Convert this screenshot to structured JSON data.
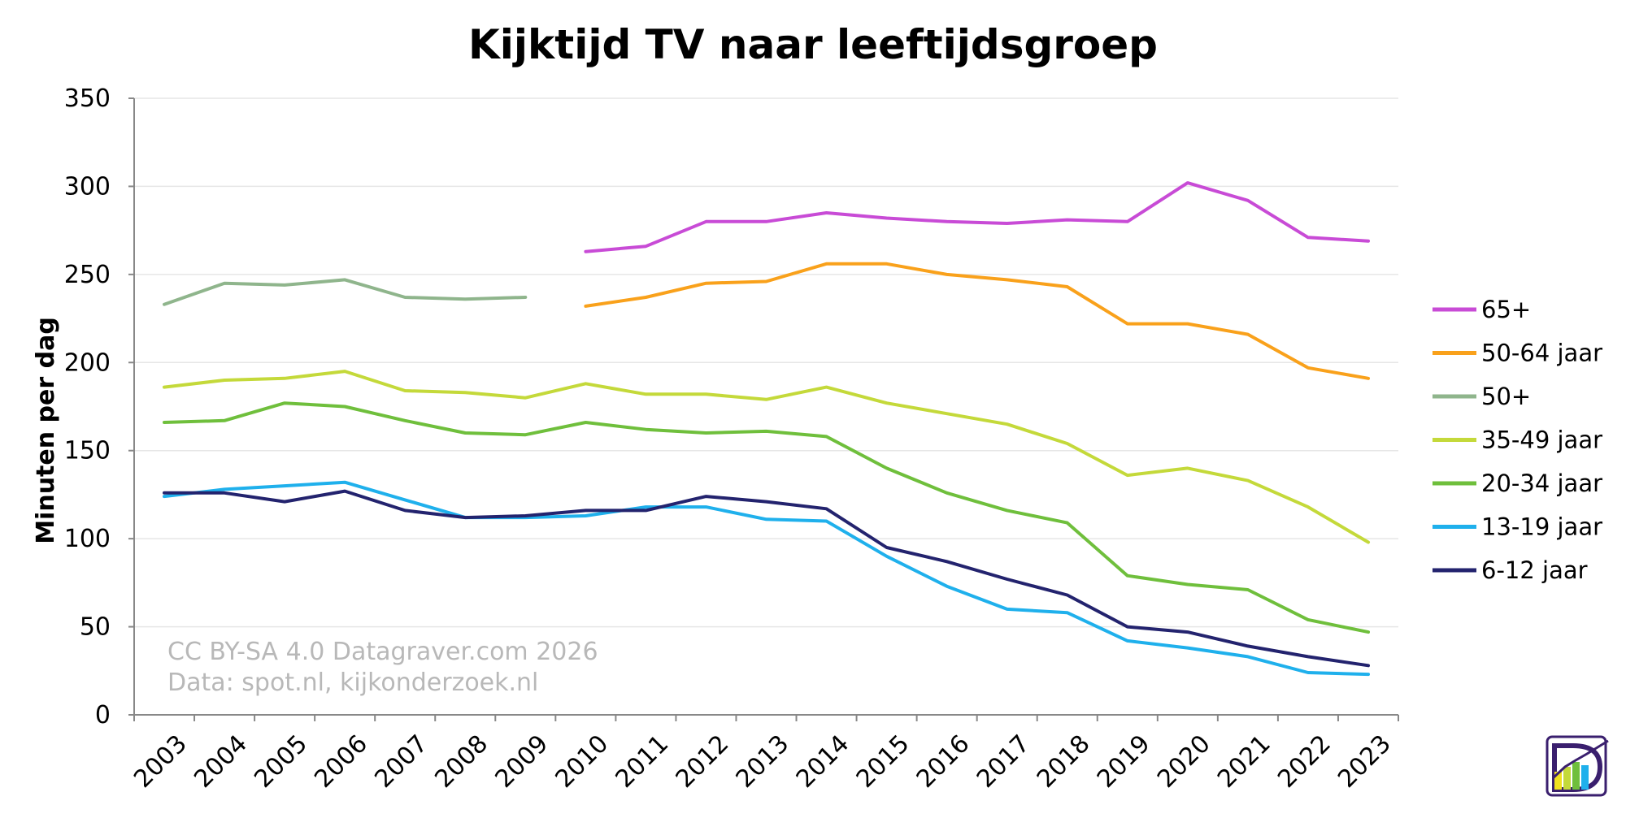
{
  "chart_data": {
    "type": "line",
    "title": "Kijktijd TV naar leeftijdsgroep",
    "xlabel": "",
    "ylabel": "Minuten per dag",
    "ylim": [
      0,
      350
    ],
    "yticks": [
      0,
      50,
      100,
      150,
      200,
      250,
      300,
      350
    ],
    "categories": [
      "2003",
      "2004",
      "2005",
      "2006",
      "2007",
      "2008",
      "2009",
      "2010",
      "2011",
      "2012",
      "2013",
      "2014",
      "2015",
      "2016",
      "2017",
      "2018",
      "2019",
      "2020",
      "2021",
      "2022",
      "2023"
    ],
    "grid": true,
    "legend_position": "right",
    "series": [
      {
        "name": "65+",
        "color": "#c84bd6",
        "values": [
          null,
          null,
          null,
          null,
          null,
          null,
          null,
          263,
          266,
          280,
          280,
          285,
          282,
          280,
          279,
          281,
          280,
          302,
          292,
          271,
          269
        ]
      },
      {
        "name": "50-64 jaar",
        "color": "#f9a11b",
        "values": [
          null,
          null,
          null,
          null,
          null,
          null,
          null,
          232,
          237,
          245,
          246,
          256,
          256,
          250,
          247,
          243,
          222,
          222,
          216,
          197,
          191
        ]
      },
      {
        "name": "50+",
        "color": "#8fb58c",
        "values": [
          233,
          245,
          244,
          247,
          237,
          236,
          237,
          null,
          null,
          null,
          null,
          null,
          null,
          null,
          null,
          null,
          null,
          null,
          null,
          null,
          null
        ]
      },
      {
        "name": "35-49 jaar",
        "color": "#c4d93a",
        "values": [
          186,
          190,
          191,
          195,
          184,
          183,
          180,
          188,
          182,
          182,
          179,
          186,
          177,
          171,
          165,
          154,
          136,
          140,
          133,
          118,
          98
        ]
      },
      {
        "name": "20-34 jaar",
        "color": "#6fbf3c",
        "values": [
          166,
          167,
          177,
          175,
          167,
          160,
          159,
          166,
          162,
          160,
          161,
          158,
          140,
          126,
          116,
          109,
          79,
          74,
          71,
          54,
          47
        ]
      },
      {
        "name": "13-19 jaar",
        "color": "#1fb0ec",
        "values": [
          124,
          128,
          130,
          132,
          122,
          112,
          112,
          113,
          118,
          118,
          111,
          110,
          90,
          73,
          60,
          58,
          42,
          38,
          33,
          24,
          23
        ]
      },
      {
        "name": "6-12 jaar",
        "color": "#23236e",
        "values": [
          126,
          126,
          121,
          127,
          116,
          112,
          113,
          116,
          116,
          124,
          121,
          117,
          95,
          87,
          77,
          68,
          50,
          47,
          39,
          33,
          28
        ]
      }
    ],
    "annotations": [
      "CC BY-SA 4.0 Datagraver.com 2026",
      "Data: spot.nl, kijkonderzoek.nl"
    ]
  },
  "logo": {
    "letter": "D",
    "colors": {
      "frame": "#3a1f6e",
      "accent": "#f0e020",
      "green": "#6fbf3c",
      "blue": "#1fb0ec"
    }
  }
}
